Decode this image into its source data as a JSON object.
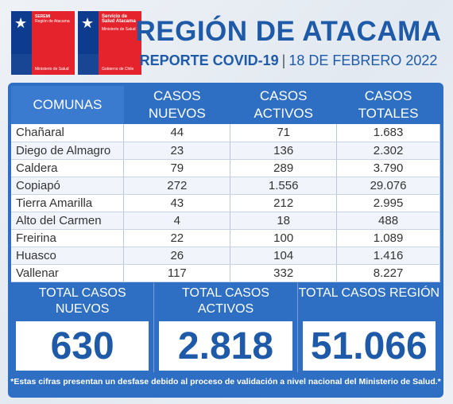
{
  "logos": {
    "seremi": {
      "line1": "SEREMI",
      "line2": "Región de Atacama",
      "line3": "Ministerio de Salud"
    },
    "servicio": {
      "line1": "Servicio de Salud Atacama",
      "line2": "Ministerio de Salud",
      "line3": "Gobierno de Chile"
    }
  },
  "header": {
    "title": "REGIÓN DE ATACAMA",
    "report": "REPORTE COVID-19",
    "separator": "|",
    "date": "18 DE FEBRERO 2022"
  },
  "table": {
    "headers": [
      "COMUNAS",
      "CASOS NUEVOS",
      "CASOS ACTIVOS",
      "CASOS TOTALES"
    ],
    "rows": [
      [
        "Chañaral",
        "44",
        "71",
        "1.683"
      ],
      [
        "Diego de Almagro",
        "23",
        "136",
        "2.302"
      ],
      [
        "Caldera",
        "79",
        "289",
        "3.790"
      ],
      [
        "Copiapó",
        "272",
        "1.556",
        "29.076"
      ],
      [
        "Tierra Amarilla",
        "43",
        "212",
        "2.995"
      ],
      [
        "Alto del Carmen",
        "4",
        "18",
        "488"
      ],
      [
        "Freirina",
        "22",
        "100",
        "1.089"
      ],
      [
        "Huasco",
        "26",
        "104",
        "1.416"
      ],
      [
        "Vallenar",
        "117",
        "332",
        "8.227"
      ]
    ]
  },
  "totals": [
    {
      "label": "TOTAL CASOS NUEVOS",
      "value": "630"
    },
    {
      "label": "TOTAL CASOS ACTIVOS",
      "value": "2.818"
    },
    {
      "label": "TOTAL CASOS REGIÓN",
      "value": "51.066"
    }
  ],
  "footnote": "*Estas cifras presentan un desfase debido al proceso de validación a nivel nacional del Ministerio de Salud.*",
  "colors": {
    "brand_blue": "#1e5aa8",
    "panel_blue": "#2e6fc3",
    "gov_red": "#e4232c",
    "gov_navy": "#0d3b8e"
  }
}
